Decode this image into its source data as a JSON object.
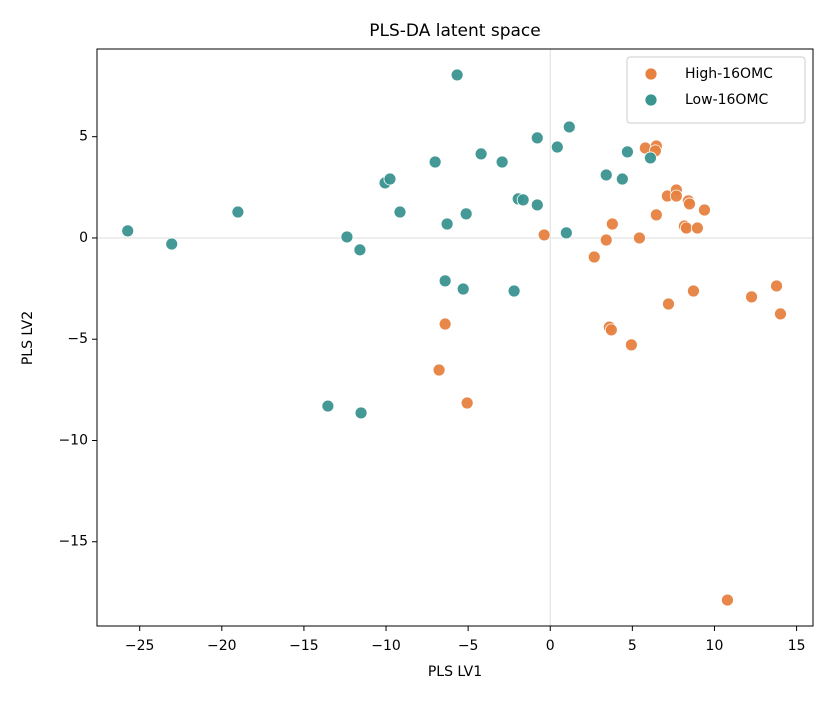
{
  "chart_data": {
    "type": "scatter",
    "title": "PLS-DA latent space",
    "x_label": "PLS LV1",
    "y_label": "PLS LV2",
    "xlim": [
      -27.6,
      16.0
    ],
    "ylim": [
      -19.16,
      9.33
    ],
    "xticks": [
      {
        "value": -25,
        "label": "−25"
      },
      {
        "value": -20,
        "label": "−20"
      },
      {
        "value": -15,
        "label": "−15"
      },
      {
        "value": -10,
        "label": "−10"
      },
      {
        "value": -5,
        "label": "−5"
      },
      0,
      5,
      10,
      15
    ],
    "yticks": [
      {
        "value": -15,
        "label": "−15"
      },
      {
        "value": -10,
        "label": "−10"
      },
      {
        "value": -5,
        "label": "−5"
      },
      0,
      5
    ],
    "legend": "upper right",
    "series": [
      {
        "name": "High-16OMC",
        "color": "#e6813f",
        "x": [
          5.79,
          6.46,
          6.4,
          7.13,
          7.68,
          7.68,
          6.46,
          8.41,
          8.48,
          9.39,
          8.17,
          8.29,
          8.96,
          3.78,
          -0.37,
          3.41,
          5.43,
          2.68,
          7.2,
          8.72,
          12.26,
          13.78,
          14.02,
          3.6,
          3.72,
          4.94,
          -6.4,
          -6.77,
          -5.06,
          10.79
        ],
        "values": [
          4.44,
          4.54,
          4.3,
          2.07,
          2.37,
          2.07,
          1.14,
          1.83,
          1.68,
          1.38,
          0.59,
          0.49,
          0.49,
          0.69,
          0.15,
          -0.1,
          0,
          -0.94,
          -3.26,
          -2.62,
          -2.91,
          -2.37,
          -3.75,
          -4.4,
          -4.54,
          -5.28,
          -4.25,
          -6.52,
          -8.15,
          -17.88
        ]
      },
      {
        "name": "Low-16OMC",
        "color": "#3a9490",
        "x": [
          -5.67,
          1.16,
          -0.79,
          0.43,
          4.7,
          6.1,
          -4.21,
          -2.93,
          -7.01,
          -10.06,
          -9.76,
          3.41,
          4.39,
          -19.02,
          -9.15,
          -5.12,
          -1.95,
          -1.65,
          -0.79,
          -25.73,
          -23.05,
          -12.38,
          -11.59,
          -6.28,
          0.98,
          -6.4,
          -5.3,
          -2.2,
          -13.54,
          -11.52
        ],
        "values": [
          8.05,
          5.48,
          4.94,
          4.49,
          4.25,
          3.95,
          4.15,
          3.75,
          3.75,
          2.72,
          2.91,
          3.11,
          2.91,
          1.28,
          1.28,
          1.19,
          1.93,
          1.88,
          1.63,
          0.35,
          -0.3,
          0.05,
          -0.59,
          0.69,
          0.25,
          -2.12,
          -2.52,
          -2.62,
          -8.3,
          -8.64
        ]
      }
    ]
  }
}
